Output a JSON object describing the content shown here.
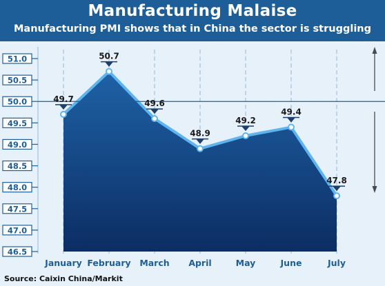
{
  "header": {
    "title": "Manufacturing Malaise",
    "subtitle": "Manufacturing PMI shows that in China the sector is struggling"
  },
  "source": "Source: Caixin China/Markit",
  "colors": {
    "header_bg": "#1d5e98",
    "plot_bg": "#e7f1fa",
    "area_top": "#1e62a6",
    "area_bottom": "#0c2d63",
    "line": "#5eb4ee",
    "tick_box": "#1d5e98",
    "axis_text": "#1d5e98",
    "arrow": "#4a4a4a"
  },
  "chart_data": {
    "type": "area",
    "categories": [
      "January",
      "February",
      "March",
      "April",
      "May",
      "June",
      "July"
    ],
    "values": [
      49.7,
      50.7,
      49.6,
      48.9,
      49.2,
      49.4,
      47.8
    ],
    "value_labels": [
      "49.7",
      "50.7",
      "49.6",
      "48.9",
      "49.2",
      "49.4",
      "47.8"
    ],
    "y_ticks": [
      "46.5",
      "47.0",
      "47.5",
      "48.0",
      "48.5",
      "49.0",
      "49.5",
      "50.0",
      "50.5",
      "51.0"
    ],
    "ylim": [
      46.5,
      51.0
    ],
    "reference_line": 50.0,
    "grid": "vertical dashed",
    "xlabel": "",
    "ylabel": ""
  }
}
